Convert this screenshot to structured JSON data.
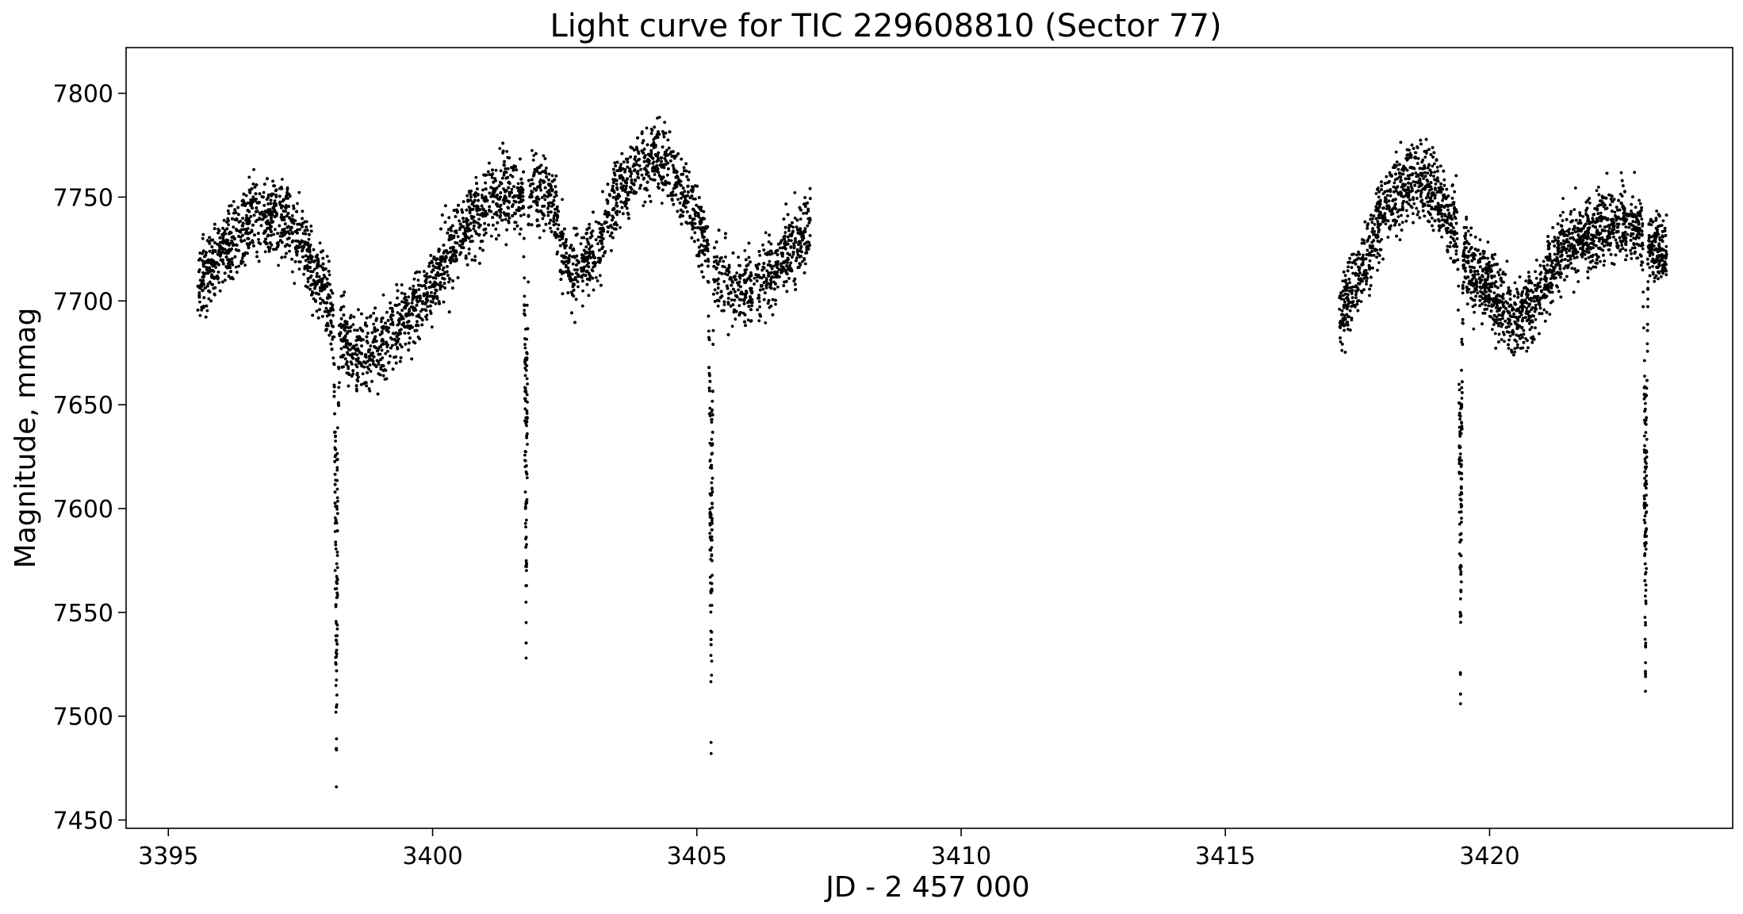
{
  "chart_data": {
    "type": "scatter",
    "title": "Light curve for TIC 229608810 (Sector 77)",
    "xlabel": "JD - 2 457 000",
    "ylabel": "Magnitude, mmag",
    "xlim": [
      3394.2,
      3424.6
    ],
    "ylim": [
      7446,
      7822
    ],
    "xticks": [
      3395,
      3400,
      3405,
      3410,
      3415,
      3420
    ],
    "yticks": [
      7450,
      7500,
      7550,
      7600,
      7650,
      7700,
      7750,
      7800
    ],
    "xtick_labels": [
      "3395",
      "3400",
      "3405",
      "3410",
      "3415",
      "3420"
    ],
    "ytick_labels": [
      "7450",
      "7500",
      "7550",
      "7600",
      "7650",
      "7700",
      "7750",
      "7800"
    ],
    "grid": false,
    "legend": "none",
    "marker_color": "#000000",
    "segments": [
      [
        3395.55,
        3407.15
      ],
      [
        3417.15,
        3423.35
      ]
    ],
    "series": [
      {
        "baseline": [
          [
            3395.55,
            7708
          ],
          [
            3396.0,
            7722
          ],
          [
            3396.6,
            7740
          ],
          [
            3397.0,
            7742
          ],
          [
            3397.4,
            7733
          ],
          [
            3397.9,
            7708
          ],
          [
            3398.2,
            7688
          ],
          [
            3398.5,
            7675
          ],
          [
            3399.0,
            7678
          ],
          [
            3399.5,
            7692
          ],
          [
            3400.0,
            7710
          ],
          [
            3400.6,
            7735
          ],
          [
            3401.2,
            7750
          ],
          [
            3401.7,
            7752
          ],
          [
            3402.1,
            7755
          ],
          [
            3402.3,
            7745
          ],
          [
            3402.6,
            7712
          ],
          [
            3403.0,
            7722
          ],
          [
            3403.5,
            7750
          ],
          [
            3404.0,
            7768
          ],
          [
            3404.5,
            7765
          ],
          [
            3404.9,
            7745
          ],
          [
            3405.2,
            7722
          ],
          [
            3405.5,
            7708
          ],
          [
            3406.0,
            7705
          ],
          [
            3406.5,
            7715
          ],
          [
            3407.15,
            7735
          ],
          [
            3417.15,
            7690
          ],
          [
            3417.6,
            7715
          ],
          [
            3418.0,
            7745
          ],
          [
            3418.6,
            7762
          ],
          [
            3419.0,
            7752
          ],
          [
            3419.3,
            7738
          ],
          [
            3419.6,
            7718
          ],
          [
            3420.0,
            7706
          ],
          [
            3420.5,
            7690
          ],
          [
            3420.9,
            7702
          ],
          [
            3421.3,
            7722
          ],
          [
            3421.8,
            7732
          ],
          [
            3422.3,
            7738
          ],
          [
            3422.7,
            7736
          ],
          [
            3422.95,
            7730
          ],
          [
            3423.35,
            7722
          ]
        ],
        "eclipses": [
          {
            "center": 3398.18,
            "min": 7466
          },
          {
            "center": 3401.77,
            "min": 7528
          },
          {
            "center": 3405.27,
            "min": 7482
          },
          {
            "center": 3419.45,
            "min": 7506
          },
          {
            "center": 3422.95,
            "min": 7512
          }
        ]
      }
    ]
  }
}
